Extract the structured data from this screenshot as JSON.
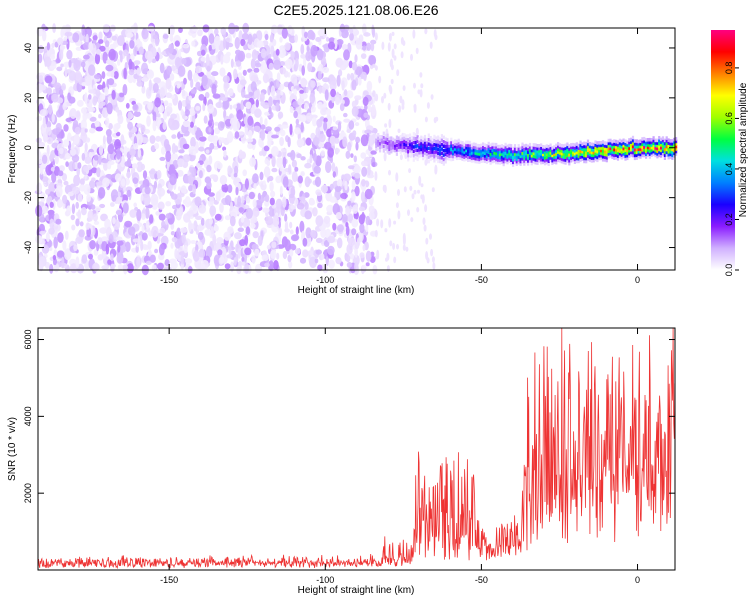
{
  "title": "C2E5.2025.121.08.06.E26",
  "chart_data": [
    {
      "type": "heatmap",
      "xlabel": "Height of straight line (km)",
      "ylabel": "Frequency (Hz)",
      "xlim": [
        -192,
        12
      ],
      "ylim": [
        -49,
        48
      ],
      "xticks": [
        -150,
        -100,
        -50,
        0
      ],
      "xtick_labels": [
        "-150",
        "-100",
        "-50",
        "0"
      ],
      "yticks": [
        40,
        20,
        0,
        -20,
        -40
      ],
      "ytick_labels": [
        "40",
        "20",
        "0",
        "-20",
        "-40"
      ],
      "colorbar": {
        "label": "Normalized spectral amplitude",
        "range": [
          0,
          0.95
        ],
        "ticks": [
          0.0,
          0.2,
          0.4,
          0.6,
          0.8
        ],
        "tick_labels": [
          "0.0",
          "0.2",
          "0.4",
          "0.6",
          "0.8"
        ],
        "colormap": [
          "#ffffff",
          "#d0b0ff",
          "#8a1cff",
          "#1a00ff",
          "#0080ff",
          "#00e0e0",
          "#00ff40",
          "#a0ff00",
          "#ffff00",
          "#ff8000",
          "#ff0000",
          "#ff0080"
        ]
      },
      "noise_region": {
        "x": [
          -192,
          -84
        ],
        "y": [
          -49,
          48
        ],
        "amplitude": [
          0.02,
          0.12
        ]
      },
      "signal_band": {
        "x": [
          -84,
          12
        ],
        "center_freq": [
          [
            -84,
            2
          ],
          [
            -60,
            -1
          ],
          [
            -40,
            -3
          ],
          [
            -20,
            -2
          ],
          [
            0,
            0
          ],
          [
            12,
            0
          ]
        ],
        "halfwidth_hz": 3,
        "peak_amplitude": [
          [
            -84,
            0.12
          ],
          [
            -70,
            0.3
          ],
          [
            -45,
            0.5
          ],
          [
            -25,
            0.7
          ],
          [
            -10,
            0.85
          ],
          [
            12,
            0.9
          ]
        ]
      }
    },
    {
      "type": "line",
      "xlabel": "Height of straight line (km)",
      "ylabel": "SNR (10 * v/v)",
      "xlim": [
        -192,
        12
      ],
      "ylim": [
        0,
        6300
      ],
      "xticks": [
        -150,
        -100,
        -50,
        0
      ],
      "xtick_labels": [
        "-150",
        "-100",
        "-50",
        "0"
      ],
      "yticks": [
        2000,
        4000,
        6000
      ],
      "ytick_labels": [
        "2000",
        "4000",
        "6000"
      ],
      "series": [
        {
          "color": "#ee3333",
          "envelope": [
            {
              "x": [
                -192,
                -82
              ],
              "base": 160,
              "amp": 220
            },
            {
              "x": [
                -82,
                -72
              ],
              "base": 250,
              "amp": 700
            },
            {
              "x": [
                -72,
                -52
              ],
              "base": 700,
              "amp": 2400
            },
            {
              "x": [
                -52,
                -37
              ],
              "base": 500,
              "amp": 1000
            },
            {
              "x": [
                -37,
                -20
              ],
              "base": 1500,
              "amp": 4700
            },
            {
              "x": [
                -20,
                12
              ],
              "base": 2200,
              "amp": 4000
            }
          ]
        }
      ]
    }
  ]
}
